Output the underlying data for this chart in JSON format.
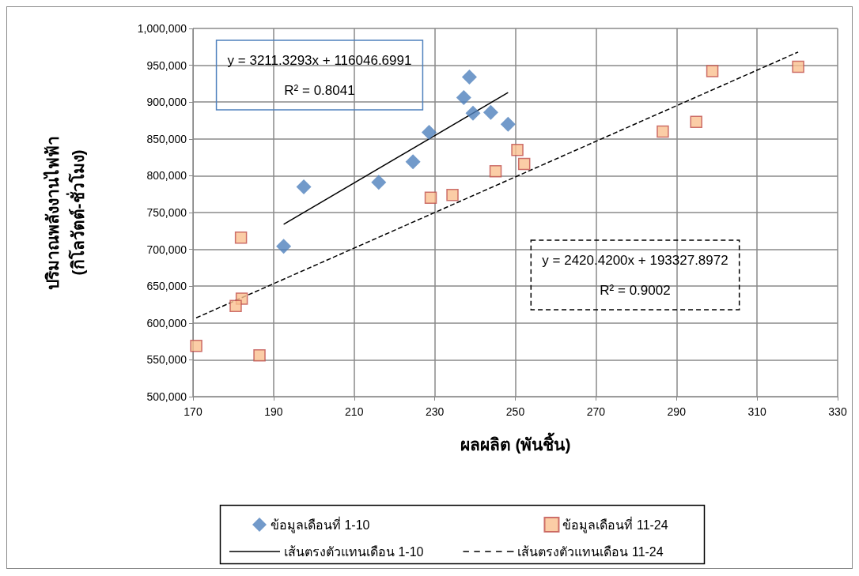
{
  "chart_data": {
    "type": "scatter",
    "xlabel": "ผลผลิต (พันชิ้น)",
    "ylabel": "ปริมาณพลังงานไฟฟ้า\n(กิโลวัตต์-ชั่วโมง)",
    "xlim": [
      170,
      330
    ],
    "xticks": [
      170,
      190,
      210,
      230,
      250,
      270,
      290,
      310,
      330
    ],
    "ylim": [
      500000,
      1000000
    ],
    "yticks": [
      {
        "value": 500000,
        "label": "500,000"
      },
      {
        "value": 550000,
        "label": "550,000"
      },
      {
        "value": 600000,
        "label": "600,000"
      },
      {
        "value": 650000,
        "label": "650,000"
      },
      {
        "value": 700000,
        "label": "700,000"
      },
      {
        "value": 750000,
        "label": "750,000"
      },
      {
        "value": 800000,
        "label": "800,000"
      },
      {
        "value": 850000,
        "label": "850,000"
      },
      {
        "value": 900000,
        "label": "900,000"
      },
      {
        "value": 950000,
        "label": "950,000"
      },
      {
        "value": 1000000,
        "label": "1,000,000"
      }
    ],
    "grid": true,
    "legend": "bottom",
    "annotations": [
      "y = 3211.3293x + 116046.6991",
      "R² = 0.8041",
      "y = 2420.4200x + 193327.8972",
      "R² = 0.9002"
    ],
    "series": [
      {
        "name": "ข้อมูลเดือนที่ 1-10",
        "marker": "diamond",
        "color": "#4f81bd",
        "x": [
          192.5,
          197.5,
          216.1,
          224.6,
          228.6,
          237.2,
          238.6,
          239.5,
          243.9,
          248.2
        ],
        "values": [
          704000,
          785000,
          791000,
          819000,
          859000,
          906000,
          934000,
          885000,
          886000,
          870000
        ]
      },
      {
        "name": "ข้อมูลเดือนที่ 11-24",
        "marker": "square",
        "color": "#fac090",
        "x": [
          170.8,
          181.9,
          182.1,
          180.6,
          186.5,
          229.0,
          234.4,
          245.1,
          250.5,
          252.2,
          286.6,
          294.9,
          298.9,
          320.2
        ],
        "values": [
          569000,
          716000,
          633000,
          623000,
          556000,
          770000,
          774000,
          806000,
          835000,
          816000,
          860000,
          873000,
          942000,
          948000
        ]
      },
      {
        "name": "เส้นตรงตัวแทนเดือน 1-10",
        "type": "line",
        "marker": "none",
        "line_style": "solid",
        "color": "#000000",
        "x": [
          192.5,
          248.2
        ],
        "values": [
          734000,
          913000
        ]
      },
      {
        "name": "เส้นตรงตัวแทนเดือน 11-24",
        "type": "line",
        "marker": "none",
        "line_style": "dashed",
        "color": "#000000",
        "x": [
          170.8,
          320.2
        ],
        "values": [
          607000,
          968000
        ]
      }
    ]
  }
}
